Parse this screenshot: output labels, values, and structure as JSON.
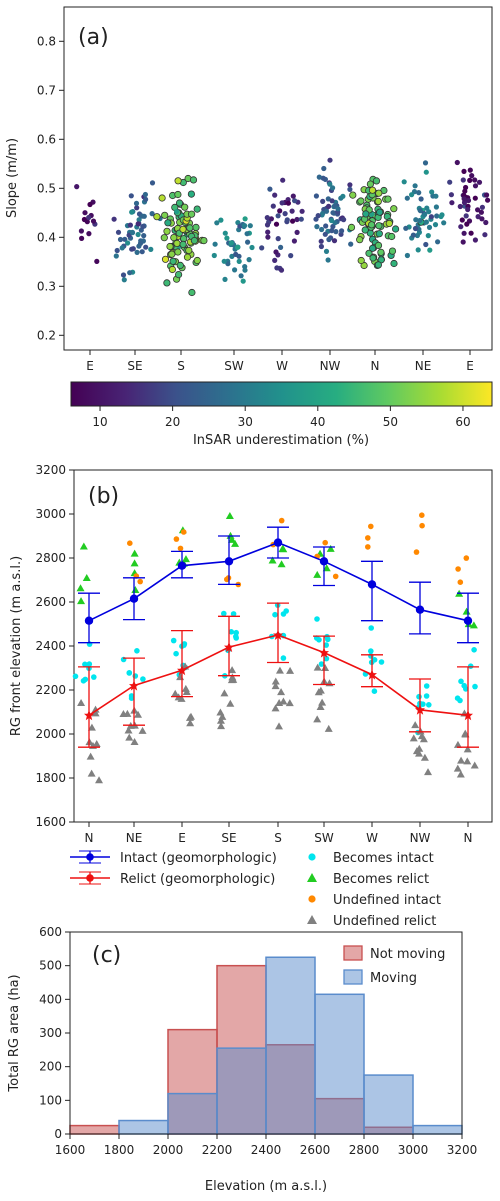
{
  "panel_labels": {
    "a": "(a)",
    "b": "(b)",
    "c": "(c)"
  },
  "colorbar": {
    "label": "InSAR underestimation (%)",
    "ticks": [
      "10",
      "20",
      "30",
      "40",
      "50",
      "60"
    ],
    "range": [
      6,
      64
    ],
    "colormap": "viridis"
  },
  "chart_data": [
    {
      "type": "scatter",
      "panel": "a",
      "title": "",
      "ylabel": "Slope (m/m)",
      "xlabel": "",
      "x_tick_labels": [
        "E",
        "SE",
        "S",
        "SW",
        "W",
        "NW",
        "N",
        "NE",
        "E"
      ],
      "y_ticks": [
        0.2,
        0.3,
        0.4,
        0.5,
        0.6,
        0.7,
        0.8
      ],
      "ylim": [
        0.17,
        0.87
      ],
      "color_variable": "InSAR underestimation (%)",
      "outlined_points_note": "",
      "clusters": [
        {
          "aspect": "E",
          "slope_mean": 0.42,
          "slope_spread": 0.08,
          "underestimation": 8,
          "count": 14
        },
        {
          "aspect": "SE",
          "slope_mean": 0.41,
          "slope_spread": 0.09,
          "underestimation": 24,
          "count": 55
        },
        {
          "aspect": "S",
          "slope_mean": 0.42,
          "slope_spread": 0.1,
          "underestimation": 50,
          "count": 95
        },
        {
          "aspect": "SW",
          "slope_mean": 0.4,
          "slope_spread": 0.09,
          "underestimation": 30,
          "count": 40
        },
        {
          "aspect": "W",
          "slope_mean": 0.45,
          "slope_spread": 0.1,
          "underestimation": 12,
          "count": 40
        },
        {
          "aspect": "NW",
          "slope_mean": 0.44,
          "slope_spread": 0.1,
          "underestimation": 22,
          "count": 60
        },
        {
          "aspect": "N",
          "slope_mean": 0.43,
          "slope_spread": 0.1,
          "underestimation": 48,
          "count": 85
        },
        {
          "aspect": "NE",
          "slope_mean": 0.45,
          "slope_spread": 0.09,
          "underestimation": 30,
          "count": 50
        },
        {
          "aspect": "E",
          "slope_mean": 0.46,
          "slope_spread": 0.08,
          "underestimation": 12,
          "count": 45
        }
      ]
    },
    {
      "type": "line",
      "panel": "b",
      "title": "",
      "ylabel": "RG front elevation (m a.s.l.)",
      "xlabel": "",
      "categories": [
        "N",
        "NE",
        "E",
        "SE",
        "S",
        "SW",
        "W",
        "NW",
        "N"
      ],
      "ylim": [
        1600,
        3200
      ],
      "y_ticks": [
        1600,
        1800,
        2000,
        2200,
        2400,
        2600,
        2800,
        3000,
        3200
      ],
      "series": [
        {
          "name": "Intact (geomorphologic)",
          "color": "#0000dd",
          "marker": "circle",
          "values": [
            2515,
            2615,
            2765,
            2785,
            2870,
            2785,
            2680,
            2565,
            2515
          ],
          "lower": [
            2415,
            2520,
            2710,
            2680,
            2800,
            2675,
            2515,
            2455,
            2415
          ],
          "upper": [
            2640,
            2710,
            2830,
            2900,
            2940,
            2850,
            2785,
            2690,
            2640
          ]
        },
        {
          "name": "Relict (geomorphologic)",
          "color": "#ee1111",
          "marker": "star",
          "values": [
            2085,
            2220,
            2290,
            2395,
            2450,
            2370,
            2270,
            2110,
            2085
          ],
          "lower": [
            1940,
            2040,
            2170,
            2265,
            2325,
            2225,
            2215,
            2010,
            1940
          ],
          "upper": [
            2305,
            2345,
            2470,
            2535,
            2595,
            2445,
            2360,
            2250,
            2305
          ]
        }
      ],
      "scatter_series": [
        {
          "name": "Becomes intact",
          "color": "#00e5ee",
          "marker": "circle"
        },
        {
          "name": "Becomes relict",
          "color": "#22cc22",
          "marker": "triangle"
        },
        {
          "name": "Undefined intact",
          "color": "#ff8800",
          "marker": "circle"
        },
        {
          "name": "Undefined relict",
          "color": "#808080",
          "marker": "triangle"
        }
      ],
      "scatter_clusters": [
        {
          "series": "Becomes intact",
          "centers": [
            2300,
            2250,
            2350,
            2450,
            2500,
            2400,
            2350,
            2150,
            2200
          ],
          "spread": 220,
          "count": 8
        },
        {
          "series": "Becomes relict",
          "centers": [
            2700,
            2750,
            2800,
            2850,
            2800,
            2800,
            0,
            0,
            2550
          ],
          "spread": 200,
          "count": 4
        },
        {
          "series": "Undefined intact",
          "centers": [
            0,
            2800,
            2900,
            2700,
            2900,
            2800,
            2900,
            2900,
            2750
          ],
          "spread": 180,
          "count": 3
        },
        {
          "series": "Undefined relict",
          "centers": [
            2000,
            2050,
            2150,
            2200,
            2200,
            2150,
            0,
            2000,
            1950
          ],
          "spread": 250,
          "count": 10
        }
      ]
    },
    {
      "type": "bar",
      "panel": "c",
      "title": "",
      "xlabel": "Elevation (m a.s.l.)",
      "ylabel": "Total RG area (ha)",
      "xlim": [
        1600,
        3200
      ],
      "ylim": [
        0,
        600
      ],
      "x_ticks": [
        1600,
        1800,
        2000,
        2200,
        2400,
        2600,
        2800,
        3000,
        3200
      ],
      "y_ticks": [
        0,
        100,
        200,
        300,
        400,
        500,
        600
      ],
      "bin_edges": [
        1600,
        1800,
        2000,
        2200,
        2400,
        2600,
        2800,
        3000,
        3200
      ],
      "series": [
        {
          "name": "Not moving",
          "color": "#c85050",
          "values": [
            25,
            0,
            310,
            500,
            265,
            105,
            20,
            0
          ]
        },
        {
          "name": "Moving",
          "color": "#5a8ccc",
          "values": [
            0,
            40,
            120,
            255,
            525,
            415,
            175,
            25
          ]
        }
      ],
      "legend_position": "top-right"
    }
  ]
}
